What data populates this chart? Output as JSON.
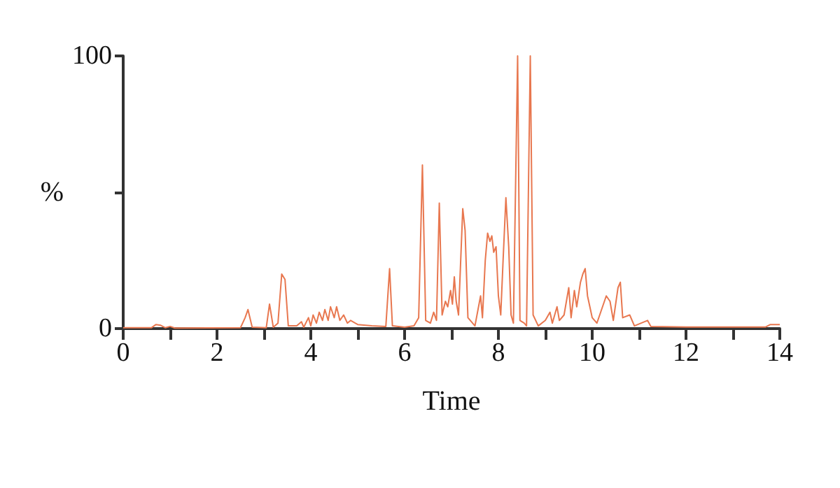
{
  "chart_data": {
    "type": "line",
    "xlabel": "Time",
    "ylabel": "%",
    "x": [
      0,
      0.6,
      0.7,
      0.8,
      0.9,
      1.0,
      1.1,
      2.5,
      2.6,
      2.66,
      2.75,
      3.05,
      3.12,
      3.2,
      3.3,
      3.38,
      3.45,
      3.52,
      3.7,
      3.8,
      3.85,
      3.95,
      4.0,
      4.05,
      4.12,
      4.18,
      4.25,
      4.3,
      4.37,
      4.42,
      4.5,
      4.55,
      4.62,
      4.7,
      4.78,
      4.85,
      5.0,
      5.3,
      5.6,
      5.68,
      5.74,
      6.0,
      6.2,
      6.3,
      6.38,
      6.45,
      6.55,
      6.62,
      6.68,
      6.74,
      6.8,
      6.87,
      6.92,
      6.98,
      7.02,
      7.06,
      7.1,
      7.15,
      7.24,
      7.29,
      7.35,
      7.5,
      7.62,
      7.66,
      7.72,
      7.77,
      7.82,
      7.86,
      7.9,
      7.95,
      8.0,
      8.05,
      8.1,
      8.16,
      8.22,
      8.27,
      8.32,
      8.41,
      8.46,
      8.55,
      8.6,
      8.68,
      8.74,
      8.85,
      9.0,
      9.1,
      9.15,
      9.25,
      9.3,
      9.4,
      9.5,
      9.55,
      9.62,
      9.67,
      9.75,
      9.8,
      9.85,
      9.9,
      9.95,
      10.0,
      10.1,
      10.3,
      10.38,
      10.45,
      10.55,
      10.6,
      10.65,
      10.8,
      10.9,
      11.18,
      11.25,
      12,
      13.7,
      13.8,
      14
    ],
    "series": [
      {
        "color": "#e8774f",
        "values": [
          0.3,
          0.3,
          1.5,
          1.2,
          0.3,
          0.8,
          0.2,
          0.3,
          4,
          7,
          0.5,
          0.3,
          9,
          0.5,
          2,
          20,
          18,
          1,
          1,
          2.5,
          0.5,
          4,
          1,
          5,
          2,
          6,
          3,
          7,
          3,
          8,
          4,
          8,
          3,
          5,
          2,
          3,
          1.5,
          1,
          0.8,
          22,
          1,
          0.5,
          1,
          4,
          60,
          3,
          2,
          6,
          3,
          46,
          5,
          10,
          8,
          14,
          9,
          19,
          10,
          5,
          44,
          36,
          4,
          1,
          12,
          4,
          25,
          35,
          32,
          34,
          28,
          30,
          12,
          5,
          25,
          48,
          30,
          5,
          2,
          100,
          3,
          2,
          1,
          100,
          5,
          1,
          3,
          6,
          2,
          8,
          3,
          5,
          15,
          4,
          14,
          8,
          17,
          20,
          22,
          12,
          8,
          4,
          2,
          12,
          10,
          3,
          15,
          17,
          4,
          5,
          1,
          3,
          0.8,
          0.6,
          0.6,
          1.5,
          1.5
        ]
      }
    ],
    "xlim": [
      0,
      14
    ],
    "xticks": [
      0,
      {
        "value": 1,
        "label": null
      },
      2,
      {
        "value": 3,
        "label": null
      },
      4,
      {
        "value": 5,
        "label": null
      },
      6,
      {
        "value": 7,
        "label": null
      },
      8,
      {
        "value": 9,
        "label": null
      },
      10,
      {
        "value": 11,
        "label": null
      },
      12,
      {
        "value": 13,
        "label": null
      },
      14
    ],
    "ylim": [
      0,
      100
    ],
    "yticks": [
      0,
      {
        "value": 50,
        "label": null
      },
      100
    ],
    "grid": false,
    "marker": "none",
    "line_style": "solid"
  }
}
